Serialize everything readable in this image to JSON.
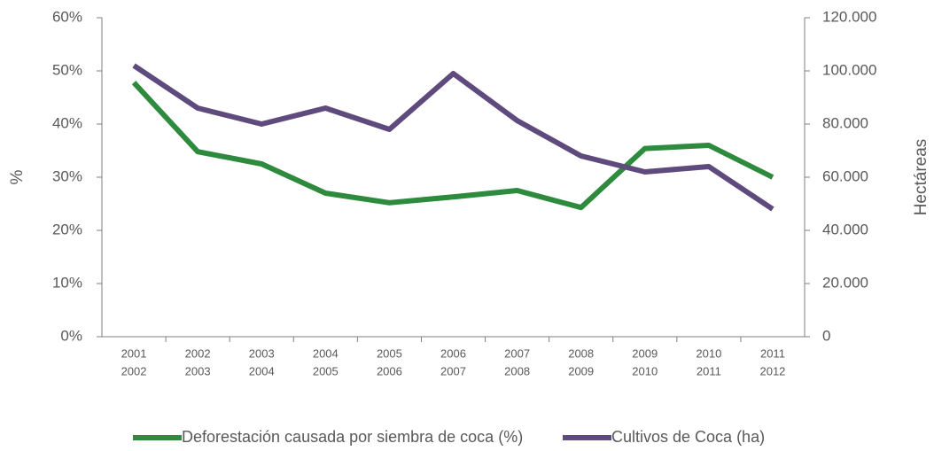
{
  "chart_data": {
    "type": "line",
    "categories": [
      [
        "2001",
        "2002"
      ],
      [
        "2002",
        "2003"
      ],
      [
        "2003",
        "2004"
      ],
      [
        "2004",
        "2005"
      ],
      [
        "2005",
        "2006"
      ],
      [
        "2006",
        "2007"
      ],
      [
        "2007",
        "2008"
      ],
      [
        "2008",
        "2009"
      ],
      [
        "2009",
        "2010"
      ],
      [
        "2010",
        "2011"
      ],
      [
        "2011",
        "2012"
      ]
    ],
    "series": [
      {
        "name": "Deforestación causada por siembra de coca (%)",
        "color": "#2e8b3e",
        "values": [
          47.8,
          34.8,
          32.5,
          27,
          25.2,
          26.3,
          27.5,
          24.3,
          35.4,
          36,
          30
        ]
      },
      {
        "name": "Cultivos de Coca (ha)",
        "color": "#5f4a7d",
        "axis": "y2",
        "values": [
          102000,
          86000,
          80000,
          86000,
          78000,
          99000,
          81300,
          68000,
          62000,
          64000,
          48000
        ]
      }
    ],
    "ylabel": "%",
    "y2label": "Hectáreas",
    "ylim": [
      0,
      60
    ],
    "yticks": [
      {
        "value": 0,
        "label": "0%"
      },
      {
        "value": 10,
        "label": "10%"
      },
      {
        "value": 20,
        "label": "20%"
      },
      {
        "value": 30,
        "label": "30%"
      },
      {
        "value": 40,
        "label": "40%"
      },
      {
        "value": 50,
        "label": "50%"
      },
      {
        "value": 60,
        "label": "60%"
      }
    ],
    "y2lim": [
      0,
      120000
    ],
    "y2ticks": [
      0,
      {
        "value": 20000,
        "label": "20.000"
      },
      {
        "value": 40000,
        "label": "40.000"
      },
      {
        "value": 60000,
        "label": "60.000"
      },
      {
        "value": 80000,
        "label": "80.000"
      },
      {
        "value": 100000,
        "label": "100.000"
      },
      {
        "value": 120000,
        "label": "120.000"
      }
    ],
    "grid": false,
    "legend": "bottom"
  }
}
